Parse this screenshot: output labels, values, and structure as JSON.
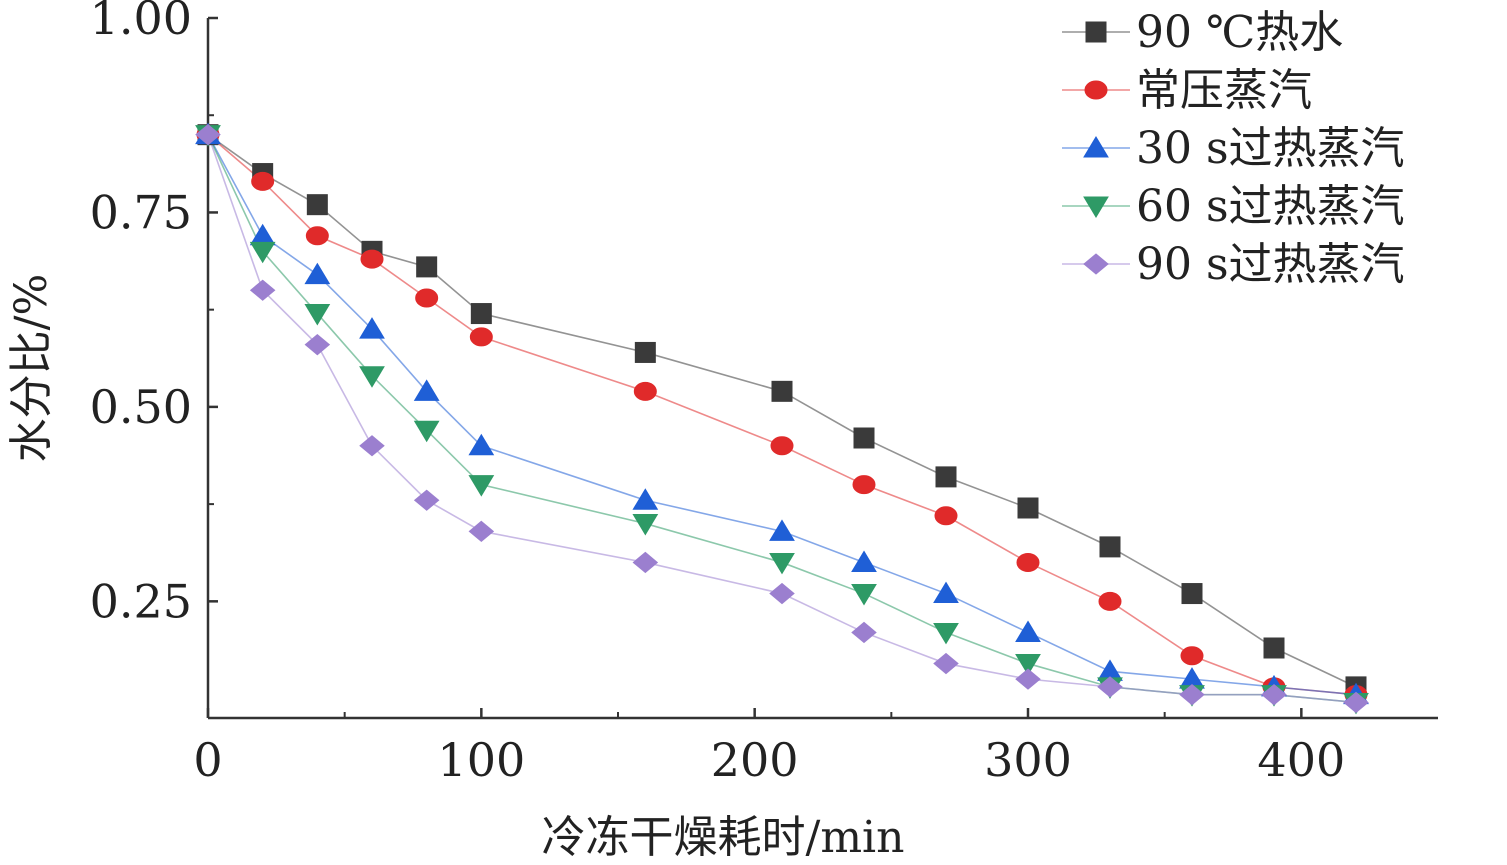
{
  "chart_data": {
    "type": "line",
    "xlabel": "冷冻干燥耗时/min",
    "ylabel": "水分比/%",
    "xlim": [
      0,
      450
    ],
    "ylim": [
      0.1,
      1.0
    ],
    "x_ticks": [
      0,
      100,
      200,
      300,
      400
    ],
    "x_tick_labels": [
      "0",
      "100",
      "200",
      "300",
      "400"
    ],
    "y_ticks": [
      0.25,
      0.5,
      0.75,
      1.0
    ],
    "y_tick_labels": [
      "0.25",
      "0.50",
      "0.75",
      "1.00"
    ],
    "grid": false,
    "legend_position": "top-right",
    "x": [
      0,
      20,
      40,
      60,
      80,
      100,
      160,
      210,
      240,
      270,
      300,
      330,
      360,
      390,
      420
    ],
    "series": [
      {
        "name": "90 ℃热水",
        "marker": "square",
        "color": "#3a3a3a",
        "values": [
          0.85,
          0.8,
          0.76,
          0.7,
          0.68,
          0.62,
          0.57,
          0.52,
          0.46,
          0.41,
          0.37,
          0.32,
          0.26,
          0.19,
          0.14
        ]
      },
      {
        "name": "常压蒸汽",
        "marker": "circle",
        "color": "#e02a2a",
        "values": [
          0.85,
          0.79,
          0.72,
          0.69,
          0.64,
          0.59,
          0.52,
          0.45,
          0.4,
          0.36,
          0.3,
          0.25,
          0.18,
          0.14,
          0.13
        ]
      },
      {
        "name": "30 s过热蒸汽",
        "marker": "triangle-up",
        "color": "#1f5fd6",
        "values": [
          0.85,
          0.72,
          0.67,
          0.6,
          0.52,
          0.45,
          0.38,
          0.34,
          0.3,
          0.26,
          0.21,
          0.16,
          0.15,
          0.14,
          0.13
        ]
      },
      {
        "name": "60 s过热蒸汽",
        "marker": "triangle-down",
        "color": "#2e9a66",
        "values": [
          0.85,
          0.7,
          0.62,
          0.54,
          0.47,
          0.4,
          0.35,
          0.3,
          0.26,
          0.21,
          0.17,
          0.14,
          0.13,
          0.13,
          0.12
        ]
      },
      {
        "name": "90 s过热蒸汽",
        "marker": "diamond",
        "color": "#9b7fcf",
        "values": [
          0.85,
          0.65,
          0.58,
          0.45,
          0.38,
          0.34,
          0.3,
          0.26,
          0.21,
          0.17,
          0.15,
          0.14,
          0.13,
          0.13,
          0.12
        ]
      }
    ]
  }
}
